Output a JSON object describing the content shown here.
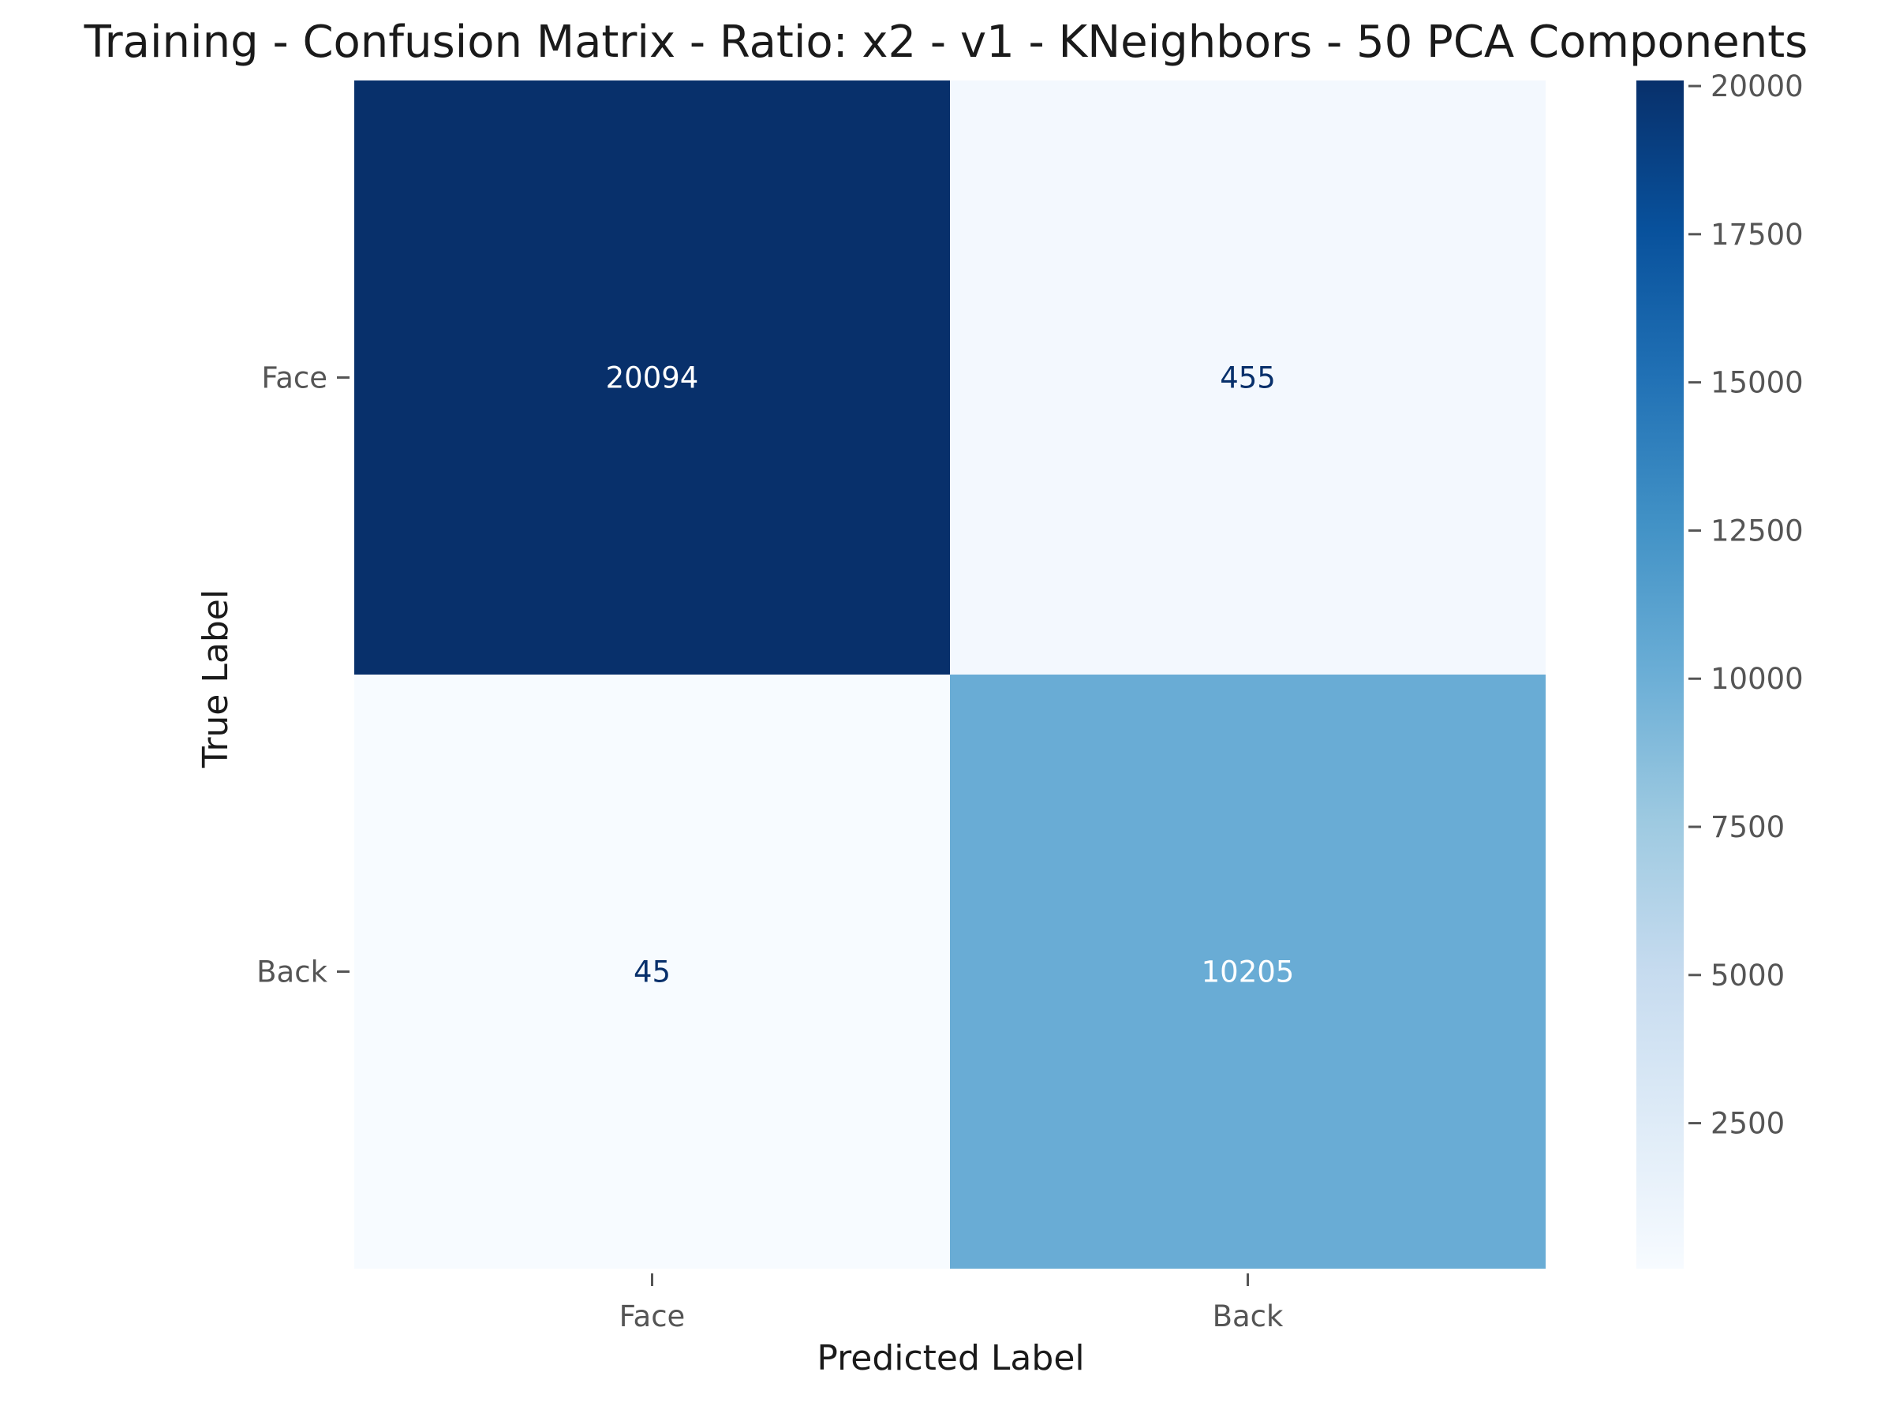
{
  "chart_data": {
    "type": "heatmap",
    "title": "Training - Confusion Matrix - Ratio: x2 - v1 - KNeighbors - 50 PCA Components",
    "xlabel": "Predicted Label",
    "ylabel": "True Label",
    "x_categories": [
      "Face",
      "Back"
    ],
    "y_categories": [
      "Face",
      "Back"
    ],
    "matrix": [
      [
        20094,
        455
      ],
      [
        45,
        10205
      ]
    ],
    "cell_labels": [
      [
        "20094",
        "455"
      ],
      [
        "45",
        "10205"
      ]
    ],
    "colormap": "Blues",
    "color_low": "#f7fbff",
    "color_high": "#08306b",
    "colorbar": {
      "range": [
        45,
        20094
      ],
      "ticks": [
        2500,
        5000,
        7500,
        10000,
        12500,
        15000,
        17500,
        20000
      ],
      "tick_labels": [
        "2500",
        "5000",
        "7500",
        "10000",
        "12500",
        "15000",
        "17500",
        "20000"
      ]
    },
    "grid": false
  }
}
